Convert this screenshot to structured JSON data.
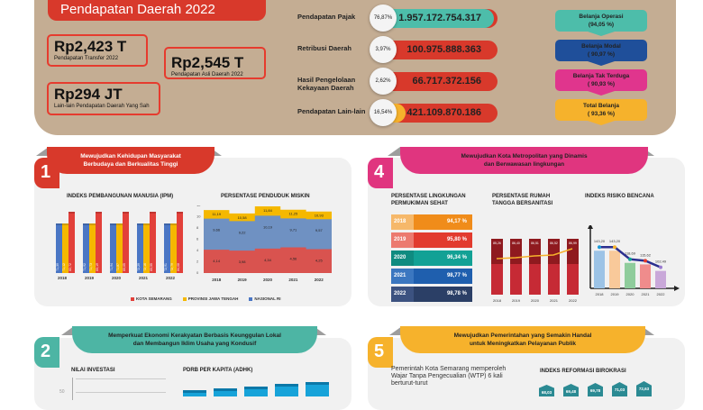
{
  "top": {
    "title": "Pendapatan Daerah 2022",
    "boxes": [
      {
        "value": "Rp2,423 T",
        "label": "Pendapatan Transfer 2022"
      },
      {
        "value": "Rp2,545 T",
        "label": "Pendapatan Asli Daerah 2022"
      },
      {
        "value": "Rp294 JT",
        "label": "Lain-lain Pendapatan Daerah Yang Sah"
      }
    ],
    "income": [
      {
        "label": "Pendapatan Pajak",
        "pct": "76,87%",
        "amount": "1.957.172.754.317",
        "color": "#4dbdaa",
        "fill": 97
      },
      {
        "label": "Retribusi Daerah",
        "pct": "3,97%",
        "amount": "100.975.888.363",
        "color": "#1f4f9a",
        "fill": 14
      },
      {
        "label": "Hasil Pengelolaan Kekayaan Daerah",
        "pct": "2,62%",
        "amount": "66.717.372.156",
        "color": "#e0358d",
        "fill": 11
      },
      {
        "label": "Pendapatan Lain-lain",
        "pct": "16,54%",
        "amount": "421.109.870.186",
        "color": "#f6b22c",
        "fill": 23
      }
    ],
    "spending": [
      {
        "label": "Belanja Operasi",
        "value": "(94,05 %)",
        "color": "#4dbdaa"
      },
      {
        "label": "Belanja Modal",
        "value": "( 90,97 %)",
        "color": "#1f4f9a"
      },
      {
        "label": "Belanja Tak Terduga",
        "value": "( 90,93 %)",
        "color": "#e0358d"
      },
      {
        "label": "Total Belanja",
        "value": "( 93,36 %)",
        "color": "#f6b22c"
      }
    ]
  },
  "section1": {
    "number": "1",
    "ribbon": "Mewujudkan Kehidupan Masyarakat\nBerbudaya dan Berkualitas Tinggi",
    "color": "#d8392b",
    "ipm_title": "INDEKS PEMBANGUNAN MANUSIA (IPM)",
    "poverty_title": "PERSENTASE PENDUDUK MISKIN",
    "legend": [
      "KOTA SEMARANG",
      "PROVINSI JAWA TENGAH",
      "NASIONAL RI"
    ]
  },
  "section4": {
    "number": "4",
    "ribbon": "Mewujudkan Kota Metropolitan yang Dinamis\ndan Berwawasan lingkungan",
    "color": "#e0357f",
    "env_title": "PERSENTASE LINGKUNGAN PERMUKIMAN SEHAT",
    "san_title": "PERSENTASE RUMAH TANGGA BERSANITASI",
    "risk_title": "INDEKS RISIKO BENCANA"
  },
  "section2": {
    "number": "2",
    "ribbon": "Memperkuat Ekonomi Kerakyatan Berbasis Keunggulan Lokal\ndan Membangun Iklim Usaha yang Kondusif",
    "color": "#4db5a4",
    "inv_title": "NILAI INVESTASI",
    "inv_tick": "50",
    "pdrb_title": "PDRB PER KAPITA (ADHK)"
  },
  "section5": {
    "number": "5",
    "ribbon": "Mewujudkan Pemerintahan yang Semakin Handal\nuntuk Meningkatkan Pelayanan Publik",
    "color": "#f6b22c",
    "wtp_text": "Pemerintah Kota Semarang memperoleh Wajar Tanpa Pengecualian (WTP) 6 kali berturut-turut",
    "rb_title": "INDEKS REFORMASI BIROKRASI",
    "rb_values": [
      "68,03",
      "69,48",
      "69,78",
      "71,03",
      "72,63"
    ]
  },
  "chart_data": [
    {
      "type": "bar",
      "title": "INDEKS PEMBANGUNAN MANUSIA (IPM)",
      "categories": [
        "2018",
        "2019",
        "2020",
        "2021",
        "2022"
      ],
      "series": [
        {
          "name": "NASIONAL RI",
          "values": [
            71.39,
            71.92,
            71.94,
            72.29,
            72.91
          ],
          "color": "#4a76c4"
        },
        {
          "name": "PROVINSI JAWA TENGAH",
          "values": [
            71.12,
            71.73,
            71.87,
            72.16,
            72.79
          ],
          "color": "#f5b800"
        },
        {
          "name": "KOTA SEMARANG",
          "values": [
            82.72,
            83.19,
            83.05,
            83.55,
            84.08
          ],
          "color": "#e2403a"
        }
      ]
    },
    {
      "type": "area",
      "title": "PERSENTASE PENDUDUK MISKIN",
      "categories": [
        "2018",
        "2019",
        "2020",
        "2021",
        "2022"
      ],
      "ylim": [
        0,
        12
      ],
      "yticks": [
        0,
        2,
        4,
        6,
        8,
        10,
        12
      ],
      "series": [
        {
          "name": "PROVINSI JAWA TENGAH",
          "values": [
            11.19,
            10.58,
            11.84,
            11.25,
            10.93
          ],
          "color": "#f5b800"
        },
        {
          "name": "NASIONAL RI",
          "values": [
            9.66,
            9.22,
            10.19,
            9.71,
            9.57
          ],
          "color": "#6f91c2"
        },
        {
          "name": "KOTA SEMARANG",
          "values": [
            4.14,
            3.98,
            4.34,
            4.56,
            4.25
          ],
          "color": "#d9534f"
        }
      ]
    },
    {
      "type": "table",
      "title": "PERSENTASE LINGKUNGAN PERMUKIMAN SEHAT",
      "rows": [
        {
          "year": "2018",
          "value": "94,17 %",
          "color": "#f08c1a",
          "ycolor": "#f6b86a"
        },
        {
          "year": "2019",
          "value": "95,80 %",
          "color": "#e23b2e",
          "ycolor": "#ec7a6f"
        },
        {
          "year": "2020",
          "value": "96,34 %",
          "color": "#12a195",
          "ycolor": "#0f8b80"
        },
        {
          "year": "2021",
          "value": "98,77 %",
          "color": "#1f5fae",
          "ycolor": "#3b77c0"
        },
        {
          "year": "2022",
          "value": "98,78 %",
          "color": "#2b3f66",
          "ycolor": "#3c5280"
        }
      ]
    },
    {
      "type": "bar",
      "title": "PERSENTASE RUMAH TANGGA BERSANITASI",
      "categories": [
        "2018",
        "2019",
        "2020",
        "2021",
        "2022"
      ],
      "values": [
        85.26,
        86.4,
        86.51,
        86.52,
        86.99
      ],
      "labels": [
        "85,26",
        "86,40",
        "86,51",
        "86,52",
        "86,99"
      ]
    },
    {
      "type": "line",
      "title": "INDEKS RISIKO BENCANA",
      "categories": [
        "2018",
        "2019",
        "2020",
        "2021",
        "2022"
      ],
      "values": [
        143.2,
        143.2,
        118.69,
        115.62,
        102.49
      ],
      "labels": [
        "143,20",
        "143,20",
        "118,69",
        "115,62",
        "102,49"
      ],
      "bar_colors": [
        "#9cc3e6",
        "#f9c99a",
        "#8fcc9c",
        "#ef8c8c",
        "#c9a8d9"
      ]
    },
    {
      "type": "bar",
      "title": "INDEKS REFORMASI BIROKRASI",
      "values": [
        68.03,
        69.48,
        69.78,
        71.03,
        72.63
      ]
    }
  ]
}
